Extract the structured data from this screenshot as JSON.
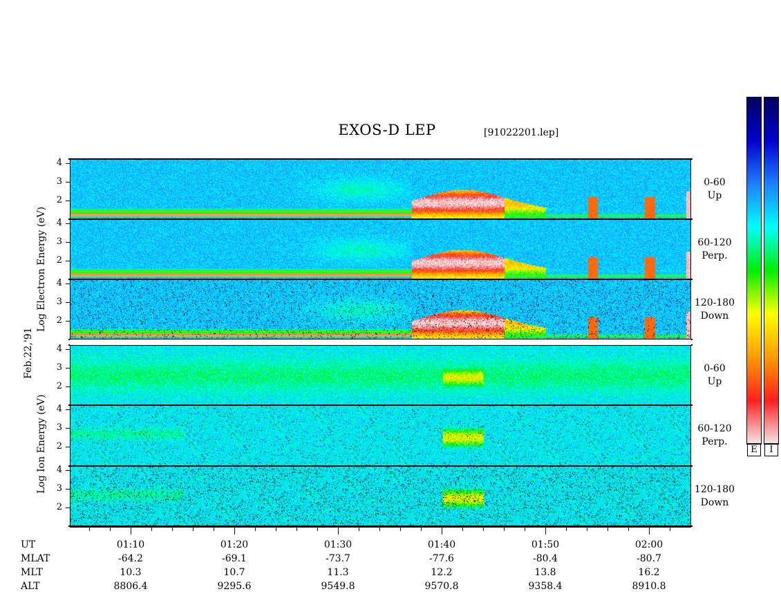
{
  "header": {
    "title": "EXOS-D LEP",
    "file": "[91022201.lep]"
  },
  "date_label": "Feb.22,'91",
  "groups": [
    {
      "y_label": "Log   Electron   Energy  (eV)"
    },
    {
      "y_label": "Log     Ion     Energy  (eV)"
    }
  ],
  "panels": [
    {
      "group": "Electron",
      "pitch_range": "0-60",
      "direction": "Up"
    },
    {
      "group": "Electron",
      "pitch_range": "60-120",
      "direction": "Perp."
    },
    {
      "group": "Electron",
      "pitch_range": "120-180",
      "direction": "Down"
    },
    {
      "group": "Ion",
      "pitch_range": "0-60",
      "direction": "Up"
    },
    {
      "group": "Ion",
      "pitch_range": "60-120",
      "direction": "Perp."
    },
    {
      "group": "Ion",
      "pitch_range": "120-180",
      "direction": "Down"
    }
  ],
  "y_ticks": [
    "4",
    "3",
    "2"
  ],
  "colorbars": [
    {
      "label": "E",
      "stops": [
        "#f5e6ea",
        "#ff2020",
        "#ff9a00",
        "#ffff00",
        "#00ee00",
        "#00ffff",
        "#1f7fff",
        "#0000cc",
        "#000060"
      ]
    },
    {
      "label": "I",
      "stops": [
        "#f5e6ea",
        "#ff2020",
        "#ff9a00",
        "#ffff00",
        "#00ee00",
        "#00ffff",
        "#1f7fff",
        "#0000cc",
        "#000060"
      ]
    }
  ],
  "x_axis": {
    "row_labels": [
      "UT",
      "MLAT",
      "MLT",
      "ALT"
    ],
    "columns": [
      {
        "UT": "01:10",
        "MLAT": "-64.2",
        "MLT": "10.3",
        "ALT": "8806.4"
      },
      {
        "UT": "01:20",
        "MLAT": "-69.1",
        "MLT": "10.7",
        "ALT": "9295.6"
      },
      {
        "UT": "01:30",
        "MLAT": "-73.7",
        "MLT": "11.3",
        "ALT": "9549.8"
      },
      {
        "UT": "01:40",
        "MLAT": "-77.6",
        "MLT": "12.2",
        "ALT": "9570.8"
      },
      {
        "UT": "01:50",
        "MLAT": "-80.4",
        "MLT": "13.8",
        "ALT": "9358.4"
      },
      {
        "UT": "02:00",
        "MLAT": "-80.7",
        "MLT": "16.2",
        "ALT": "8910.8"
      }
    ]
  },
  "chart_data": {
    "type": "heatmap",
    "title": "EXOS-D LEP",
    "x": [
      "01:10",
      "01:20",
      "01:30",
      "01:40",
      "01:50",
      "02:00"
    ],
    "xlim": [
      "01:04",
      "02:03"
    ],
    "ylim": [
      1,
      4.2
    ],
    "y_scale": "log10 energy (eV)",
    "y_ticks": [
      2,
      3,
      4
    ],
    "grid": false,
    "colorbar_placement": "right",
    "series": [
      {
        "name": "Electron 0-60 Up"
      },
      {
        "name": "Electron 60-120 Perp."
      },
      {
        "name": "Electron 120-180 Down"
      },
      {
        "name": "Ion 0-60 Up"
      },
      {
        "name": "Ion 60-120 Perp."
      },
      {
        "name": "Ion 120-180 Down"
      }
    ]
  }
}
